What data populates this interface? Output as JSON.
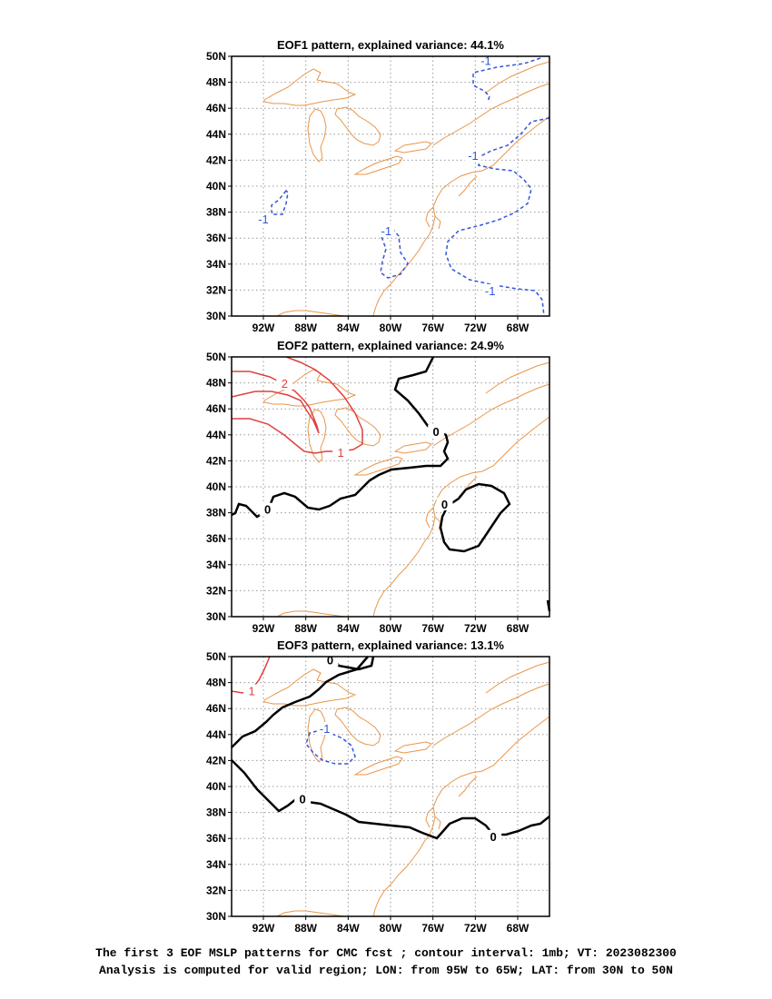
{
  "panels": [
    {
      "title": "EOF1 pattern, explained variance: 44.1%",
      "contours": [
        {
          "value": -1,
          "label": "-1",
          "style": "dashed",
          "color": "#3355dd",
          "labels_at": [
            [
              -71.0,
              49.6
            ],
            [
              -72.2,
              42.3
            ],
            [
              -80.4,
              36.5
            ],
            [
              -92.0,
              37.4
            ],
            [
              -70.6,
              31.9
            ]
          ]
        }
      ]
    },
    {
      "title": "EOF2 pattern, explained variance: 24.9%",
      "contours": [
        {
          "value": 2,
          "label": "2",
          "style": "solid",
          "color": "#e04040",
          "labels_at": [
            [
              -90.0,
              47.9
            ]
          ]
        },
        {
          "value": 1,
          "label": "1",
          "style": "solid",
          "color": "#e04040",
          "labels_at": [
            [
              -84.7,
              42.6
            ]
          ]
        },
        {
          "value": 0,
          "label": "0",
          "style": "solid-thick",
          "color": "#000000",
          "labels_at": [
            [
              -75.7,
              44.2
            ],
            [
              -91.6,
              38.2
            ],
            [
              -74.9,
              38.6
            ]
          ]
        }
      ]
    },
    {
      "title": "EOF3 pattern, explained variance: 13.1%",
      "contours": [
        {
          "value": 1,
          "label": "1",
          "style": "solid",
          "color": "#e04040",
          "labels_at": [
            [
              -93.1,
              47.3
            ]
          ]
        },
        {
          "value": -1,
          "label": "-1",
          "style": "dashed",
          "color": "#3355dd",
          "labels_at": [
            [
              -86.2,
              44.4
            ]
          ]
        },
        {
          "value": 0,
          "label": "0",
          "style": "solid-thick",
          "color": "#000000",
          "labels_at": [
            [
              -85.7,
              49.7
            ],
            [
              -88.3,
              39.0
            ],
            [
              -70.3,
              36.1
            ]
          ]
        }
      ]
    }
  ],
  "axes": {
    "lon_range": [
      -95,
      -65
    ],
    "lat_range": [
      30,
      50
    ],
    "x_ticks": [
      {
        "value": -92,
        "label": "92W"
      },
      {
        "value": -88,
        "label": "88W"
      },
      {
        "value": -84,
        "label": "84W"
      },
      {
        "value": -80,
        "label": "80W"
      },
      {
        "value": -76,
        "label": "76W"
      },
      {
        "value": -72,
        "label": "72W"
      },
      {
        "value": -68,
        "label": "68W"
      }
    ],
    "y_ticks": [
      {
        "value": 50,
        "label": "50N"
      },
      {
        "value": 48,
        "label": "48N"
      },
      {
        "value": 46,
        "label": "46N"
      },
      {
        "value": 44,
        "label": "44N"
      },
      {
        "value": 42,
        "label": "42N"
      },
      {
        "value": 40,
        "label": "40N"
      },
      {
        "value": 38,
        "label": "38N"
      },
      {
        "value": 36,
        "label": "36N"
      },
      {
        "value": 34,
        "label": "34N"
      },
      {
        "value": 32,
        "label": "32N"
      },
      {
        "value": 30,
        "label": "30N"
      }
    ],
    "grid": "dotted"
  },
  "colors": {
    "coastline": "#e8964a",
    "positive_contour": "#e04040",
    "negative_contour": "#3355dd",
    "zero_contour": "#000000",
    "grid": "#999999"
  },
  "caption": {
    "line1": "The first 3 EOF MSLP patterns for CMC fcst ; contour interval: 1mb; VT: 2023082300",
    "line2": "Analysis is computed for valid region; LON: from 95W to 65W; LAT: from 30N to 50N"
  }
}
